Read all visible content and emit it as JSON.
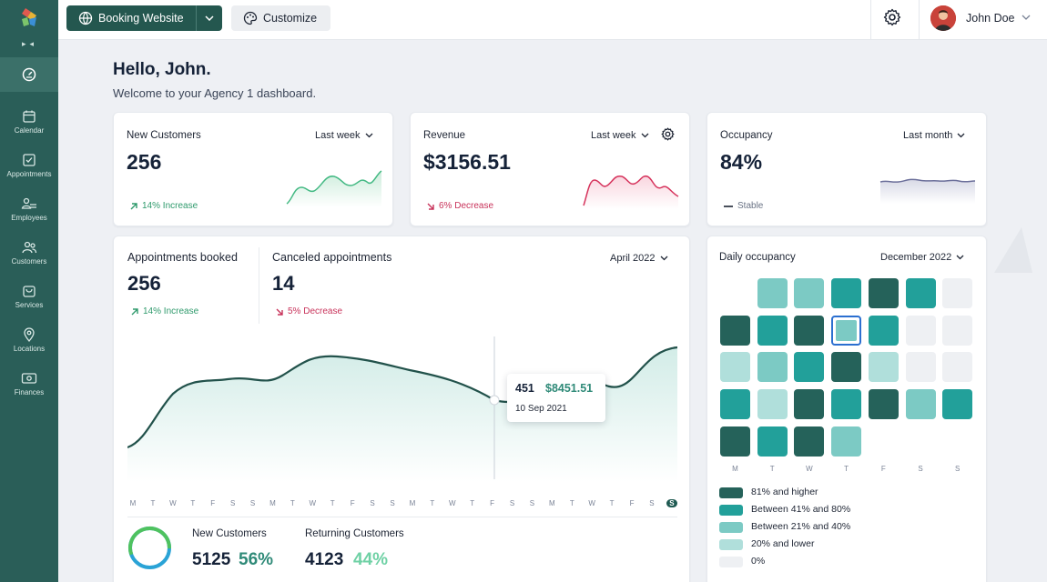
{
  "topbar": {
    "booking_label": "Booking Website",
    "customize_label": "Customize",
    "user_name": "John Doe"
  },
  "sidebar": {
    "items": [
      {
        "label": "Calendar",
        "icon": "calendar-icon"
      },
      {
        "label": "Appointments",
        "icon": "checkbox-icon"
      },
      {
        "label": "Employees",
        "icon": "employees-icon"
      },
      {
        "label": "Customers",
        "icon": "customers-icon"
      },
      {
        "label": "Services",
        "icon": "bag-icon"
      },
      {
        "label": "Locations",
        "icon": "location-pin-icon"
      },
      {
        "label": "Finances",
        "icon": "banknote-icon"
      }
    ]
  },
  "greeting": {
    "title": "Hello, John.",
    "subtitle": "Welcome to your Agency 1 dashboard."
  },
  "kpi": {
    "new_customers": {
      "title": "New Customers",
      "period": "Last week",
      "value": "256",
      "trend": "14% Increase"
    },
    "revenue": {
      "title": "Revenue",
      "period": "Last week",
      "value": "$3156.51",
      "trend": "6% Decrease"
    },
    "occupancy": {
      "title": "Occupancy",
      "period": "Last month",
      "value": "84%",
      "trend": "Stable"
    }
  },
  "appointments": {
    "booked_title": "Appointments booked",
    "booked_value": "256",
    "booked_trend": "14% Increase",
    "canceled_title": "Canceled appointments",
    "canceled_value": "14",
    "canceled_trend": "5% Decrease",
    "period": "April 2022",
    "tooltip": {
      "count": "451",
      "amount": "$8451.51",
      "date": "10 Sep 2021"
    },
    "days": [
      "M",
      "T",
      "W",
      "T",
      "F",
      "S",
      "S",
      "M",
      "T",
      "W",
      "T",
      "F",
      "S",
      "S",
      "M",
      "T",
      "W",
      "T",
      "F",
      "S",
      "S",
      "M",
      "T",
      "W",
      "T",
      "F",
      "S",
      "S"
    ],
    "new_customers_label": "New Customers",
    "new_customers_value": "5125",
    "new_customers_pct": "56%",
    "returning_label": "Returning Customers",
    "returning_value": "4123",
    "returning_pct": "44%"
  },
  "daily_occupancy": {
    "title": "Daily occupancy",
    "period": "December 2022",
    "days": [
      "M",
      "T",
      "W",
      "T",
      "F",
      "S",
      "S"
    ],
    "legend": [
      "81% and higher",
      "Between 41% and 80%",
      "Between 21% and 40%",
      "20% and lower",
      "0%"
    ],
    "colors": {
      "high": "#25625a",
      "mid": "#22a09a",
      "low": "#7ccac4",
      "lowest": "#b0dfdb",
      "zero": "#eef0f3"
    }
  },
  "colors": {
    "accent": "#24574f",
    "increase": "#2f9a6c",
    "decrease": "#c8325a"
  }
}
